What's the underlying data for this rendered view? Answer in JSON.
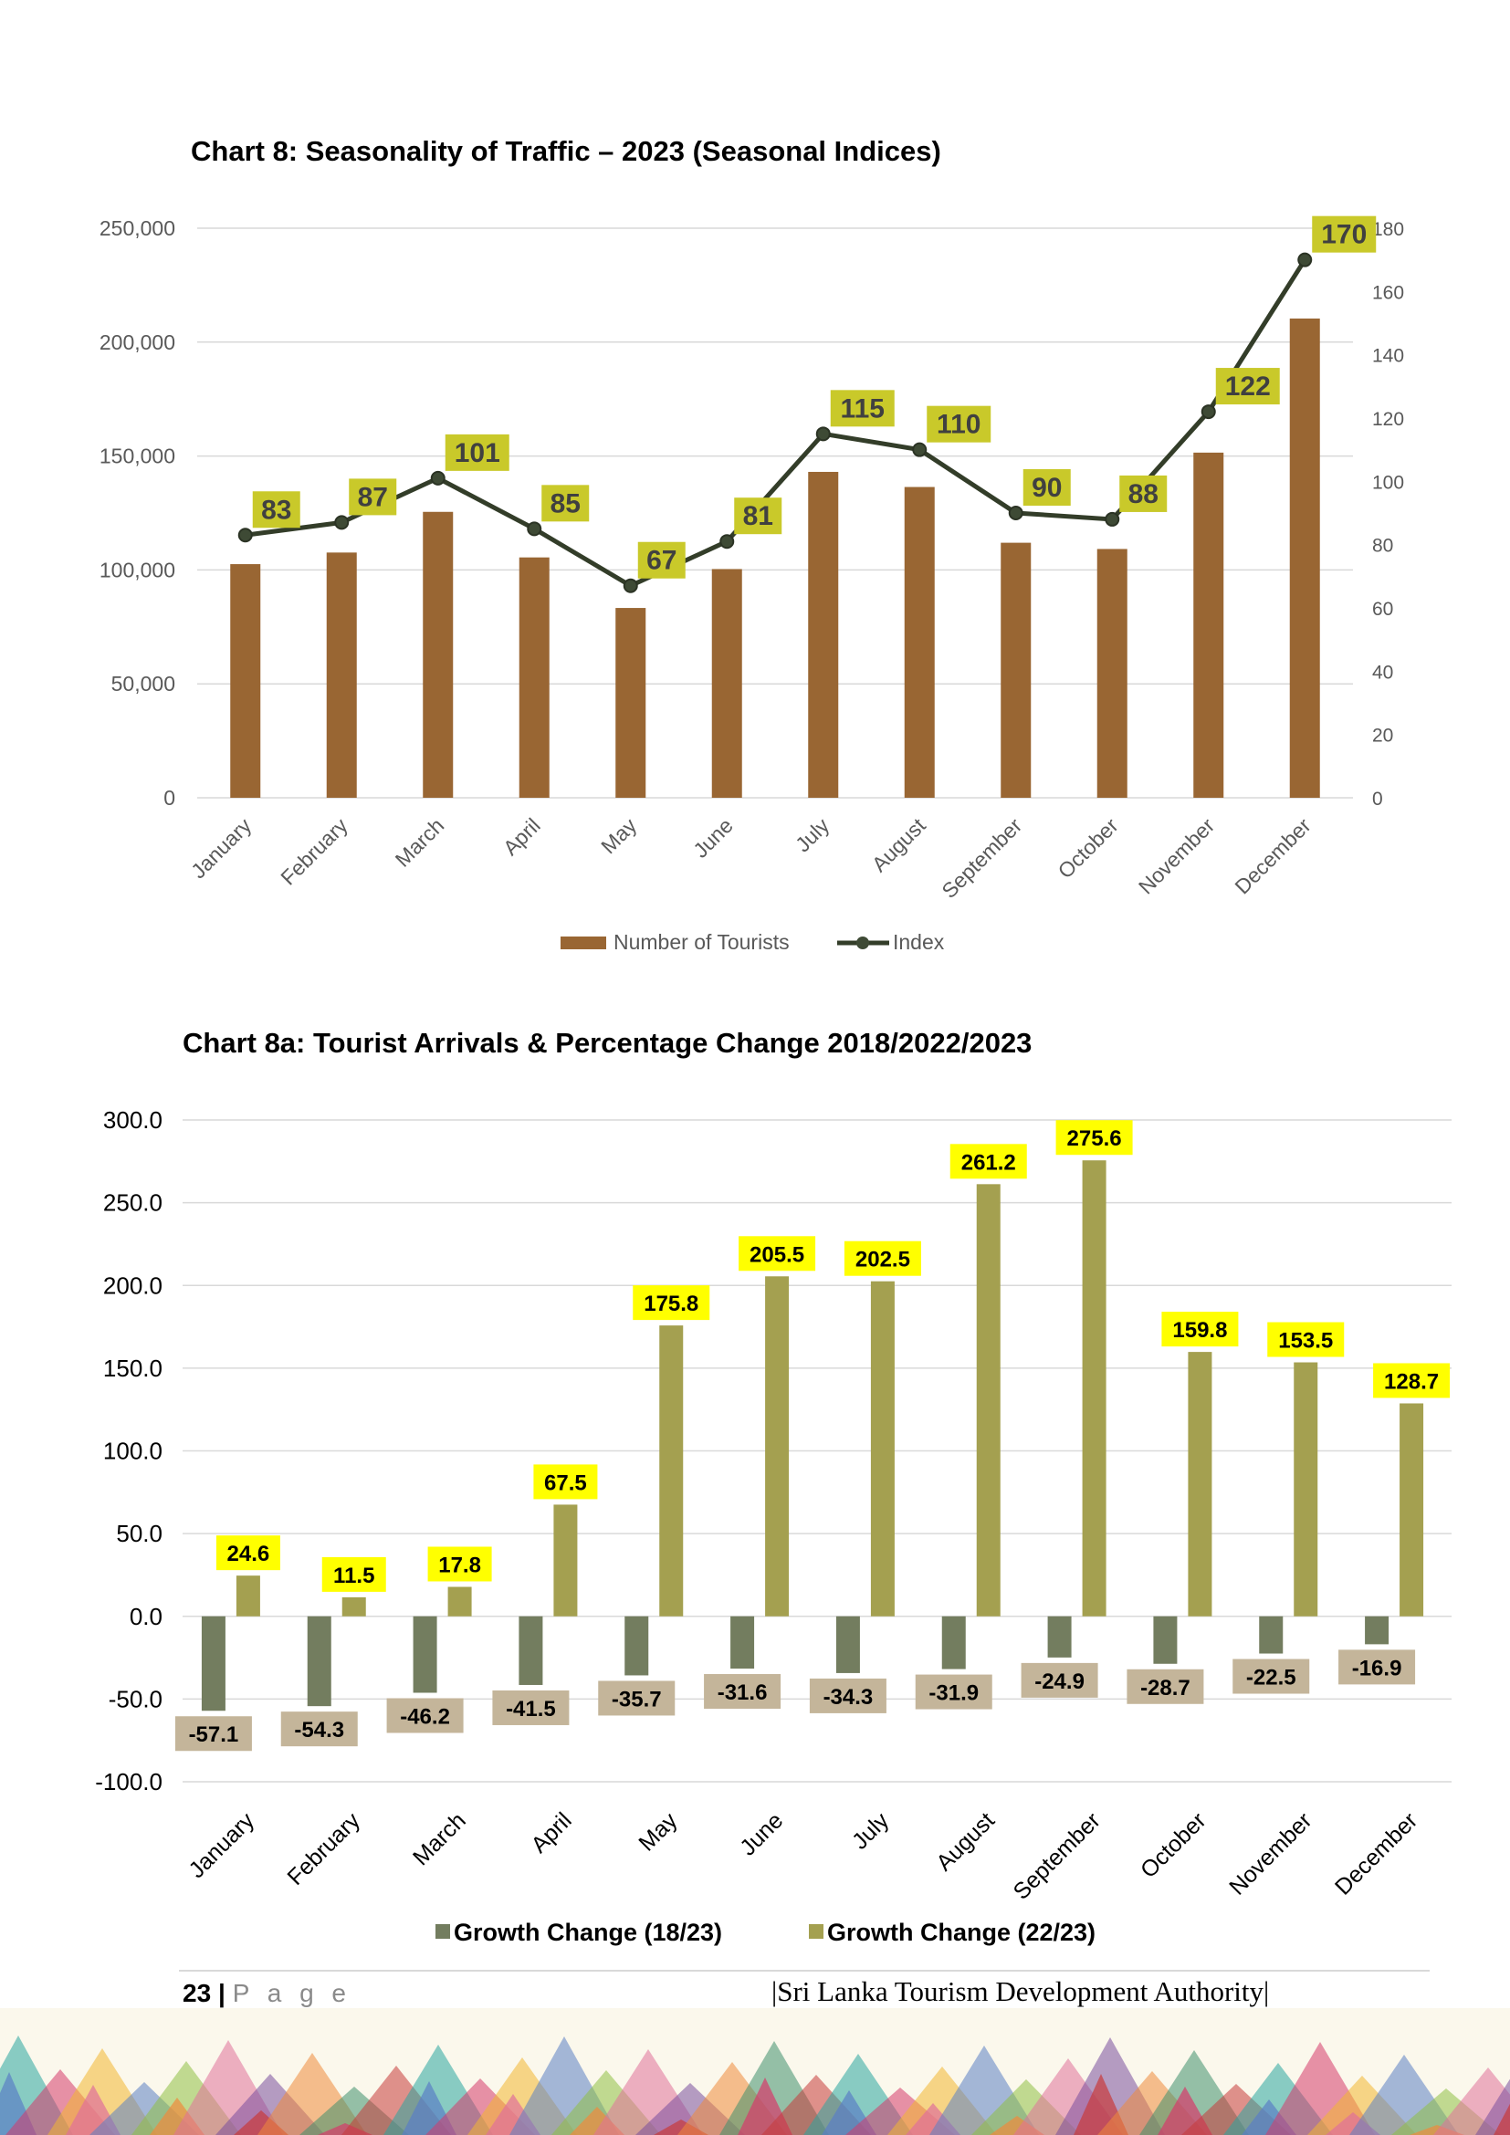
{
  "page": {
    "number": "23",
    "separator": "|",
    "page_word": "P a g e",
    "organization": "|Sri Lanka Tourism Development Authority|"
  },
  "chart_data": [
    {
      "type": "bar",
      "title": "Chart 8: Seasonality of Traffic – 2023 (Seasonal Indices)",
      "categories": [
        "January",
        "February",
        "March",
        "April",
        "May",
        "June",
        "July",
        "August",
        "September",
        "October",
        "November",
        "December"
      ],
      "series": [
        {
          "name": "Number of Tourists",
          "kind": "bar",
          "axis": "left",
          "color": "#996633",
          "values": [
            102545,
            107639,
            125495,
            105498,
            83309,
            100388,
            143039,
            136405,
            111938,
            109199,
            151496,
            210352
          ]
        },
        {
          "name": "Index",
          "kind": "line",
          "axis": "right",
          "color": "#333d29",
          "values": [
            83,
            87,
            101,
            85,
            67,
            81,
            115,
            110,
            90,
            88,
            122,
            170
          ],
          "labels": [
            "83",
            "87",
            "101",
            "85",
            "67",
            "81",
            "115",
            "110",
            "90",
            "88",
            "122",
            "170"
          ]
        }
      ],
      "left_axis": {
        "min": 0,
        "max": 250000,
        "ticks": [
          "0",
          "50,000",
          "100,000",
          "150,000",
          "200,000",
          "250,000"
        ]
      },
      "right_axis": {
        "min": 0,
        "max": 180,
        "ticks": [
          "0",
          "20",
          "40",
          "60",
          "80",
          "100",
          "120",
          "140",
          "160",
          "180"
        ]
      },
      "label_bg": "#c9c92a",
      "grid": true,
      "legend": "bottom"
    },
    {
      "type": "bar",
      "title": "Chart 8a: Tourist Arrivals & Percentage Change 2018/2022/2023",
      "categories": [
        "January",
        "February",
        "March",
        "April",
        "May",
        "June",
        "July",
        "August",
        "September",
        "October",
        "November",
        "December"
      ],
      "series": [
        {
          "name": "Growth Change (18/23)",
          "color": "#737d5f",
          "label_bg": "#c4b59a",
          "values": [
            -57.1,
            -54.3,
            -46.2,
            -41.5,
            -35.7,
            -31.6,
            -34.3,
            -31.9,
            -24.9,
            -28.7,
            -22.5,
            -16.9
          ],
          "labels": [
            "-57.1",
            "-54.3",
            "-46.2",
            "-41.5",
            "-35.7",
            "-31.6",
            "-34.3",
            "-31.9",
            "-24.9",
            "-28.7",
            "-22.5",
            "-16.9"
          ]
        },
        {
          "name": "Growth Change (22/23)",
          "color": "#a4a050",
          "label_bg": "#ffff00",
          "values": [
            24.6,
            11.5,
            17.8,
            67.5,
            175.8,
            205.5,
            202.5,
            261.2,
            275.6,
            159.8,
            153.5,
            128.7
          ],
          "labels": [
            "24.6",
            "11.5",
            "17.8",
            "67.5",
            "175.8",
            "205.5",
            "202.5",
            "261.2",
            "275.6",
            "159.8",
            "153.5",
            "128.7"
          ]
        }
      ],
      "y_axis": {
        "min": -100,
        "max": 300,
        "ticks": [
          "-100.0",
          "-50.0",
          "0.0",
          "50.0",
          "100.0",
          "150.0",
          "200.0",
          "250.0",
          "300.0"
        ]
      },
      "grid": true,
      "legend": "bottom"
    }
  ]
}
